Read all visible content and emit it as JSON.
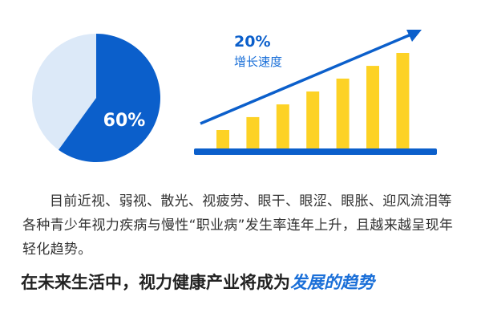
{
  "pie": {
    "percent_label": "60%",
    "share": 0.6,
    "colors": {
      "main": "#0b5fcb",
      "rest": "#dce9f8"
    }
  },
  "chart_data": {
    "type": "bar",
    "values": [
      1,
      1.67,
      2.33,
      3,
      3.67,
      4.33,
      5
    ],
    "growth_label": "20%",
    "growth_caption": "增长速度",
    "colors": {
      "bars": "#fdd225",
      "axis": "#0b5fcb",
      "arrow": "#0b5fcb"
    }
  },
  "paragraph": "目前近视、弱视、散光、视疲劳、眼干、眼涩、眼胀、迎风流泪等各种青少年视力疾病与慢性“职业病”发生率连年上升，且越来越呈现年轻化趋势。",
  "headline": {
    "main": "在未来生活中，视力健康产业将成为",
    "highlight": "发展的趋势"
  }
}
